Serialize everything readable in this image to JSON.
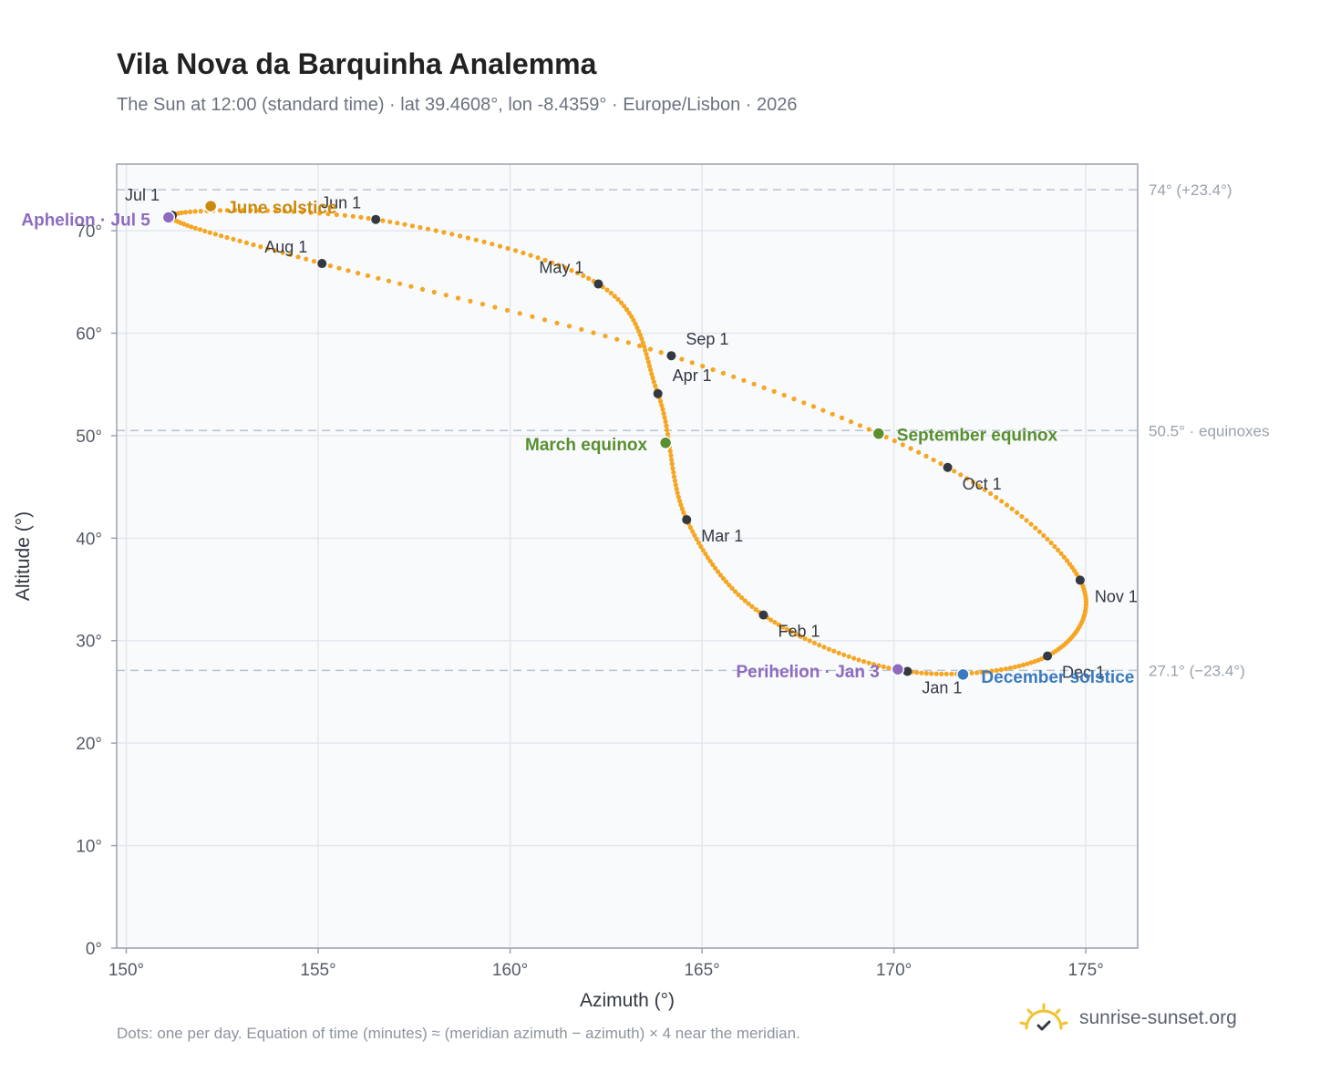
{
  "title": "Vila Nova da Barquinha Analemma",
  "subtitle": "The Sun at 12:00 (standard time) · lat 39.4608°, lon -8.4359° · Europe/Lisbon · 2026",
  "footnote": "Dots: one per day. Equation of time (minutes) ≈ (meridian azimuth − azimuth) × 4 near the meridian.",
  "brand": {
    "name": "sunrise-sunset.org",
    "icon": "sun-check-icon"
  },
  "colors": {
    "curve": "#f5a623",
    "month_dot": "#333842",
    "solstice_june": "#c98a0e",
    "solstice_december": "#3a7abf",
    "equinox": "#5a8f2f",
    "apsis": "#8e6bbf",
    "reference_line": "#b8c4d0",
    "plot_bg": "#f8fafc"
  },
  "chart_data": {
    "type": "scatter",
    "xlabel": "Azimuth (°)",
    "ylabel": "Altitude (°)",
    "xlim": [
      149.75,
      176.35
    ],
    "ylim": [
      0,
      76.5
    ],
    "xticks": [
      150,
      155,
      160,
      165,
      170,
      175
    ],
    "yticks": [
      0,
      10,
      20,
      30,
      40,
      50,
      60,
      70
    ],
    "tick_suffix": "°",
    "grid": true,
    "dots_per_day": 1,
    "months": [
      {
        "label": "Jan 1",
        "az": 170.35,
        "alt": 27.0
      },
      {
        "label": "Feb 1",
        "az": 166.6,
        "alt": 32.5
      },
      {
        "label": "Mar 1",
        "az": 164.6,
        "alt": 41.8
      },
      {
        "label": "Apr 1",
        "az": 163.85,
        "alt": 54.1
      },
      {
        "label": "May 1",
        "az": 162.3,
        "alt": 64.8
      },
      {
        "label": "Jun 1",
        "az": 156.5,
        "alt": 71.1
      },
      {
        "label": "Jul 1",
        "az": 151.2,
        "alt": 71.5
      },
      {
        "label": "Aug 1",
        "az": 155.1,
        "alt": 66.8
      },
      {
        "label": "Sep 1",
        "az": 164.2,
        "alt": 57.8
      },
      {
        "label": "Oct 1",
        "az": 171.4,
        "alt": 46.9
      },
      {
        "label": "Nov 1",
        "az": 174.85,
        "alt": 35.9
      },
      {
        "label": "Dec 1",
        "az": 174.0,
        "alt": 28.5
      }
    ],
    "events": [
      {
        "label": "June solstice",
        "az": 152.2,
        "alt": 72.4,
        "kind": "solstice_june"
      },
      {
        "label": "December solstice",
        "az": 171.8,
        "alt": 26.7,
        "kind": "solstice_december"
      },
      {
        "label": "March equinox",
        "az": 164.05,
        "alt": 49.3,
        "kind": "equinox"
      },
      {
        "label": "September equinox",
        "az": 169.6,
        "alt": 50.2,
        "kind": "equinox"
      },
      {
        "label": "Aphelion · Jul 5",
        "az": 151.1,
        "alt": 71.3,
        "kind": "apsis"
      },
      {
        "label": "Perihelion · Jan 3",
        "az": 170.1,
        "alt": 27.2,
        "kind": "apsis"
      }
    ],
    "reference_lines": [
      {
        "alt": 74.0,
        "label": "74° (+23.4°)"
      },
      {
        "alt": 50.5,
        "label": "50.5° · equinoxes"
      },
      {
        "alt": 27.1,
        "label": "27.1° (−23.4°)"
      }
    ]
  }
}
